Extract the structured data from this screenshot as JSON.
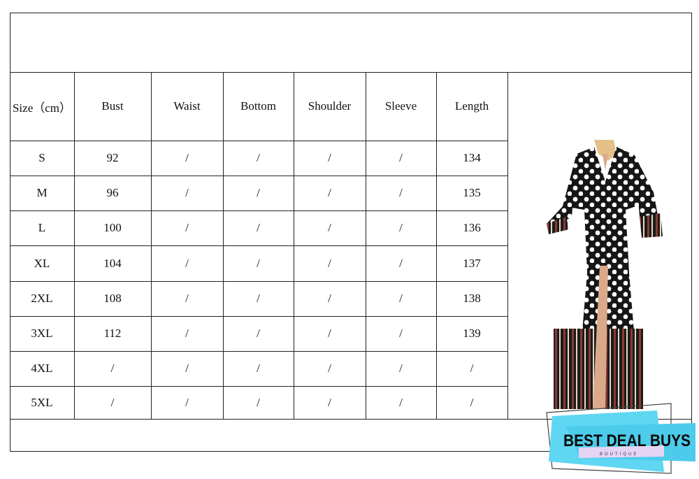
{
  "table": {
    "headers": [
      "Size（cm）",
      "Bust",
      "Waist",
      "Bottom",
      "Shoulder",
      "Sleeve",
      "Length"
    ],
    "rows": [
      [
        "S",
        "92",
        "/",
        "/",
        "/",
        "/",
        "134"
      ],
      [
        "M",
        "96",
        "/",
        "/",
        "/",
        "/",
        "135"
      ],
      [
        "L",
        "100",
        "/",
        "/",
        "/",
        "/",
        "136"
      ],
      [
        "XL",
        "104",
        "/",
        "/",
        "/",
        "/",
        "137"
      ],
      [
        "2XL",
        "108",
        "/",
        "/",
        "/",
        "/",
        "138"
      ],
      [
        "3XL",
        "112",
        "/",
        "/",
        "/",
        "/",
        "139"
      ],
      [
        "4XL",
        "/",
        "/",
        "/",
        "/",
        "/",
        "/"
      ],
      [
        "5XL",
        "/",
        "/",
        "/",
        "/",
        "/",
        "/"
      ]
    ]
  },
  "logo": {
    "title": "BEST DEAL BUYS",
    "subtitle": "BOUTIQUE"
  },
  "colors": {
    "logo_cyan": "#5fd6f2",
    "logo_lavender": "#e6d4f5",
    "dress_black": "#161616",
    "stripe_red": "#8a3b32"
  }
}
